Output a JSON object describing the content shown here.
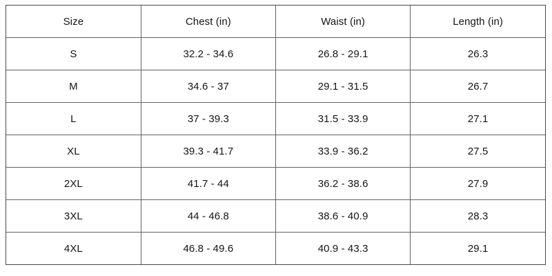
{
  "chart_data": {
    "type": "table",
    "columns": [
      "Size",
      "Chest (in)",
      "Waist (in)",
      "Length (in)"
    ],
    "rows": [
      [
        "S",
        "32.2 - 34.6",
        "26.8 - 29.1",
        "26.3"
      ],
      [
        "M",
        "34.6 - 37",
        "29.1 - 31.5",
        "26.7"
      ],
      [
        "L",
        "37 - 39.3",
        "31.5 - 33.9",
        "27.1"
      ],
      [
        "XL",
        "39.3 - 41.7",
        "33.9 - 36.2",
        "27.5"
      ],
      [
        "2XL",
        "41.7 - 44",
        "36.2 - 38.6",
        "27.9"
      ],
      [
        "3XL",
        "44 - 46.8",
        "38.6 - 40.9",
        "28.3"
      ],
      [
        "4XL",
        "46.8 - 49.6",
        "40.9 - 43.3",
        "29.1"
      ]
    ]
  },
  "colors": {
    "grid_border": "#616161",
    "outer_border": "#474747",
    "text": "#141414",
    "background": "#ffffff"
  }
}
